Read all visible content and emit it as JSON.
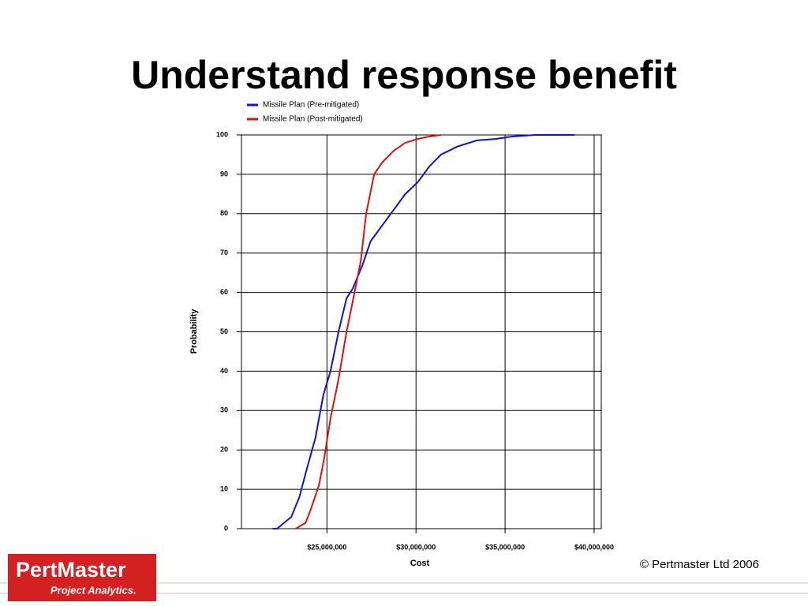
{
  "chart_data": {
    "type": "line",
    "title": "Understand response benefit",
    "xlabel": "Cost",
    "ylabel": "Probability",
    "xlim": [
      20200000,
      40400000
    ],
    "ylim": [
      0,
      100
    ],
    "xticks": [
      {
        "value": 25000000,
        "label": "$25,000,000"
      },
      {
        "value": 30000000,
        "label": "$30,000,000"
      },
      {
        "value": 35000000,
        "label": "$35,000,000"
      },
      {
        "value": 40000000,
        "label": "$40,000,000"
      }
    ],
    "yticks": [
      0,
      10,
      20,
      30,
      40,
      50,
      60,
      70,
      80,
      90,
      100
    ],
    "grid": true,
    "legend": "top",
    "series": [
      {
        "name": "Missile Plan (Pre-mitigated)",
        "color": "#1010e0",
        "x": [
          21950000,
          22200000,
          23000000,
          23450000,
          23800000,
          24350000,
          24800000,
          25200000,
          25650000,
          26100000,
          26450000,
          27000000,
          27450000,
          28100000,
          28750000,
          29400000,
          30100000,
          30750000,
          31400000,
          32300000,
          33400000,
          34500000,
          35400000,
          36700000,
          38900000
        ],
        "values": [
          0,
          0,
          3,
          8,
          14,
          23,
          34,
          40,
          50,
          58.5,
          61,
          67,
          73,
          77,
          81,
          85,
          88,
          92,
          95,
          97,
          98.6,
          99,
          99.6,
          100,
          100
        ]
      },
      {
        "name": "Missile Plan (Post-mitigated)",
        "color": "#e01010",
        "x": [
          23250000,
          23800000,
          24100000,
          24550000,
          24850000,
          25200000,
          25650000,
          26100000,
          26550000,
          26900000,
          27200000,
          27650000,
          28100000,
          28750000,
          29400000,
          30100000,
          30750000,
          31400000
        ],
        "values": [
          0,
          1.5,
          5,
          11,
          18,
          28,
          38,
          50,
          60,
          68,
          80,
          90,
          93,
          96,
          98,
          99,
          99.6,
          100
        ]
      }
    ]
  },
  "footer": {
    "logo": "PertMaster",
    "logo_sub": "Project Analytics.",
    "copyright": "© Pertmaster Ltd 2006"
  }
}
